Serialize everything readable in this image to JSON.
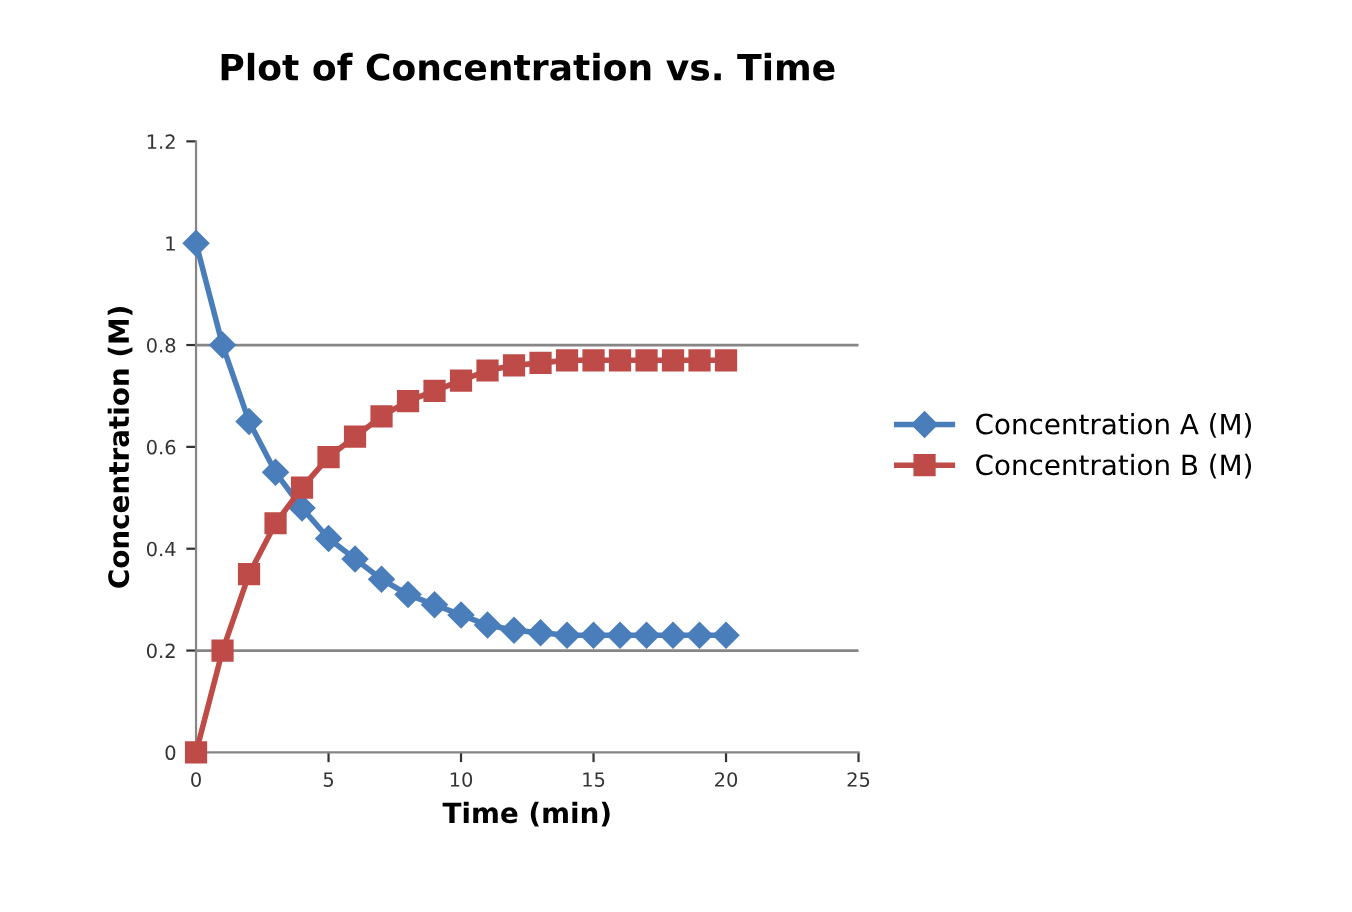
{
  "chart_data": {
    "type": "line",
    "title": "Plot of Concentration vs. Time",
    "xlabel": "Time (min)",
    "ylabel": "Concentration (M)",
    "x": [
      0,
      1,
      2,
      3,
      4,
      5,
      6,
      7,
      8,
      9,
      10,
      11,
      12,
      13,
      14,
      15,
      16,
      17,
      18,
      19,
      20
    ],
    "series": [
      {
        "name": "Concentration A (M)",
        "color": "#4a7ebb",
        "marker": "diamond",
        "values": [
          1,
          0.8,
          0.65,
          0.55,
          0.48,
          0.42,
          0.38,
          0.34,
          0.31,
          0.29,
          0.27,
          0.25,
          0.24,
          0.235,
          0.23,
          0.23,
          0.23,
          0.23,
          0.23,
          0.23,
          0.23
        ]
      },
      {
        "name": "Concentration B (M)",
        "color": "#be4b48",
        "marker": "square",
        "values": [
          0,
          0.2,
          0.35,
          0.45,
          0.52,
          0.58,
          0.62,
          0.66,
          0.69,
          0.71,
          0.73,
          0.75,
          0.76,
          0.765,
          0.77,
          0.77,
          0.77,
          0.77,
          0.77,
          0.77,
          0.77
        ]
      }
    ],
    "xlim": [
      0,
      25
    ],
    "xticks": [
      0,
      5,
      10,
      15,
      20,
      25
    ],
    "ylim": [
      0,
      1.2
    ],
    "yticks": [
      0,
      0.2,
      0.4,
      0.6,
      0.8,
      1,
      1.2
    ],
    "ref_lines": [
      {
        "axis": "y",
        "value": 0.8,
        "color": "#868686"
      },
      {
        "axis": "y",
        "value": 0.2,
        "color": "#868686"
      }
    ],
    "grid": false,
    "legend": "right",
    "line_style": "solid"
  }
}
